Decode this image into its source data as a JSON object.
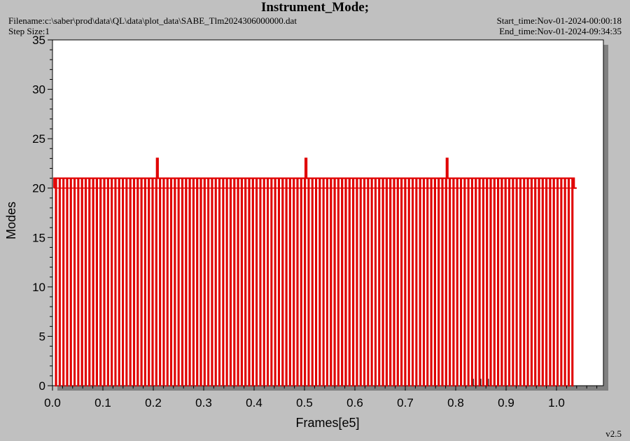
{
  "header": {
    "title": "Instrument_Mode;",
    "filename": "Filename:c:\\saber\\prod\\data\\QL\\data\\plot_data\\SABE_Tlm2024306000000.dat",
    "step_size": "Step Size:1",
    "start_time": "Start_time:Nov-01-2024-00:00:18",
    "end_time": "End_time:Nov-01-2024-09:34:35"
  },
  "footer": {
    "version": "v2.5"
  },
  "colors": {
    "series": "#e00000",
    "plot_bg": "#ffffff",
    "page_bg": "#c0c0c0",
    "shadow": "#808080"
  },
  "chart_data": {
    "type": "line",
    "title": "Instrument_Mode;",
    "xlabel": "Frames[e5]",
    "ylabel": "Modes",
    "xlim": [
      0.0,
      1.1
    ],
    "ylim": [
      0,
      35
    ],
    "x_ticks": [
      "0.0",
      "0.1",
      "0.2",
      "0.3",
      "0.4",
      "0.5",
      "0.6",
      "0.7",
      "0.8",
      "0.9",
      "1.0"
    ],
    "y_ticks": [
      "0",
      "5",
      "10",
      "15",
      "20",
      "25",
      "30",
      "35"
    ],
    "grid": false,
    "series": [
      {
        "color": "#e00000",
        "pattern": "repeating square wave between mode 0 and mode 21 (baseline mode 20)",
        "x_start": 0.003,
        "x_end": 1.035,
        "x_end_level": 20,
        "high_level": 21,
        "low_level": 0,
        "baseline_level": 20,
        "cycle_count": 140,
        "spikes": [
          {
            "x": 0.205,
            "y": 23
          },
          {
            "x": 0.499,
            "y": 23
          },
          {
            "x": 0.784,
            "y": 23
          }
        ]
      }
    ],
    "low_markers_x": [
      0.865,
      0.85,
      0.835
    ]
  }
}
